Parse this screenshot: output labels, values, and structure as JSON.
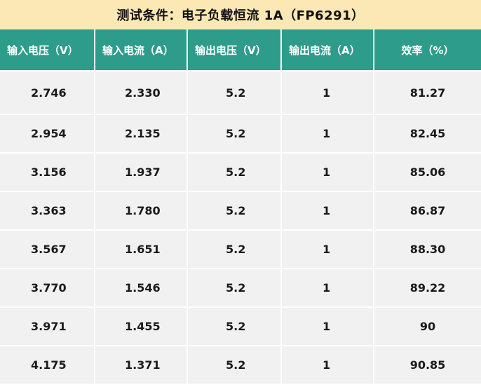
{
  "title": "测试条件：电子负载恒流 1A（FP6291）",
  "headers": [
    "输入电压（V）",
    "输入电流（A）",
    "输出电压（V）",
    "输出电流（A）",
    "效率（%）"
  ],
  "rows": [
    [
      "2.746",
      "2.330",
      "5.2",
      "1",
      "81.27"
    ],
    [
      "2.954",
      "2.135",
      "5.2",
      "1",
      "82.45"
    ],
    [
      "3.156",
      "1.937",
      "5.2",
      "1",
      "85.06"
    ],
    [
      "3.363",
      "1.780",
      "5.2",
      "1",
      "86.87"
    ],
    [
      "3.567",
      "1.651",
      "5.2",
      "1",
      "88.30"
    ],
    [
      "3.770",
      "1.546",
      "5.2",
      "1",
      "89.22"
    ],
    [
      "3.971",
      "1.455",
      "5.2",
      "1",
      "90"
    ],
    [
      "4.175",
      "1.371",
      "5.2",
      "1",
      "90.85"
    ]
  ],
  "colors": {
    "title_bg": "#fbe8b4",
    "header_bg": "#2e9c8a",
    "cell_bg": "#f1f1f1"
  }
}
